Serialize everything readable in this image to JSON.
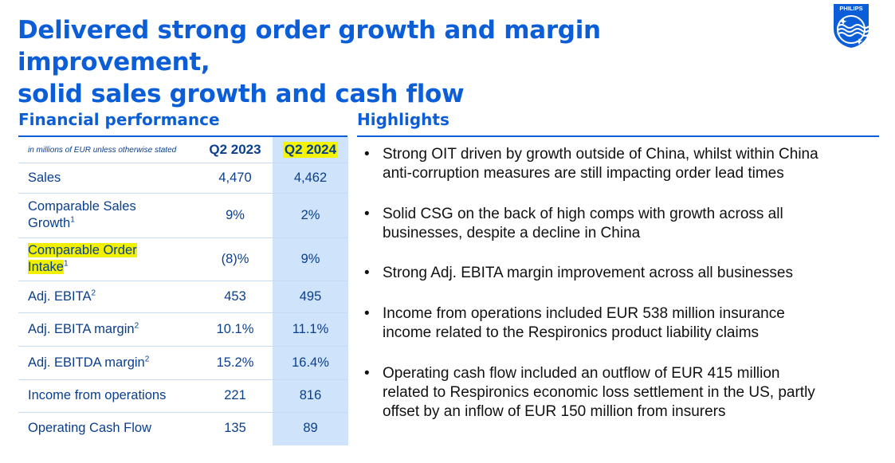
{
  "header": {
    "title_line1": "Delivered strong order growth and margin improvement,",
    "title_line2": "solid sales growth and cash flow",
    "logo_text": "PHILIPS"
  },
  "financial": {
    "heading": "Financial performance",
    "units_note": "in millions of EUR unless otherwise stated",
    "col1": "Q2 2023",
    "col2": "Q2 2024",
    "rows": [
      {
        "label": "Sales",
        "sup": "",
        "q2_2023": "4,470",
        "q2_2024": "4,462"
      },
      {
        "label_a": "Comparable Sales",
        "label_b": "Growth",
        "sup": "1",
        "q2_2023": "9%",
        "q2_2024": "2%"
      },
      {
        "label_a": "Comparable Order",
        "label_b": "Intake",
        "sup": "1",
        "q2_2023": "(8)%",
        "q2_2024": "9%"
      },
      {
        "label": "Adj. EBITA",
        "sup": "2",
        "q2_2023": "453",
        "q2_2024": "495"
      },
      {
        "label": "Adj. EBITA margin",
        "sup": "2",
        "q2_2023": "10.1%",
        "q2_2024": "11.1%"
      },
      {
        "label": "Adj. EBITDA margin",
        "sup": "2",
        "q2_2023": "15.2%",
        "q2_2024": "16.4%"
      },
      {
        "label": "Income from operations",
        "sup": "",
        "q2_2023": "221",
        "q2_2024": "816"
      },
      {
        "label": "Operating Cash Flow",
        "sup": "",
        "q2_2023": "135",
        "q2_2024": "89"
      }
    ]
  },
  "highlights": {
    "heading": "Highlights",
    "bullet_symbol": "•",
    "items": [
      {
        "line1": "Strong OIT driven by growth outside of China, whilst within China",
        "line2": "anti-corruption measures are still impacting order lead times",
        "line3": ""
      },
      {
        "line1": "Solid CSG on the back of high comps with growth across all",
        "line2": "businesses, despite a decline in China",
        "line3": ""
      },
      {
        "line1": "Strong Adj. EBITA margin improvement across all businesses",
        "line2": "",
        "line3": ""
      },
      {
        "line1": "Income from operations included EUR 538 million insurance",
        "line2": "income related to the Respironics product liability claims",
        "line3": ""
      },
      {
        "line1": "Operating cash flow included an outflow of EUR 415 million",
        "line2": "related to Respironics economic loss settlement in the US, partly",
        "line3": "offset by an inflow of EUR 150 million from insurers"
      }
    ]
  },
  "colors": {
    "brand_blue": "#0b5ed7",
    "highlight_col": "#cfe3fb",
    "marker_yellow": "#f0f000"
  }
}
